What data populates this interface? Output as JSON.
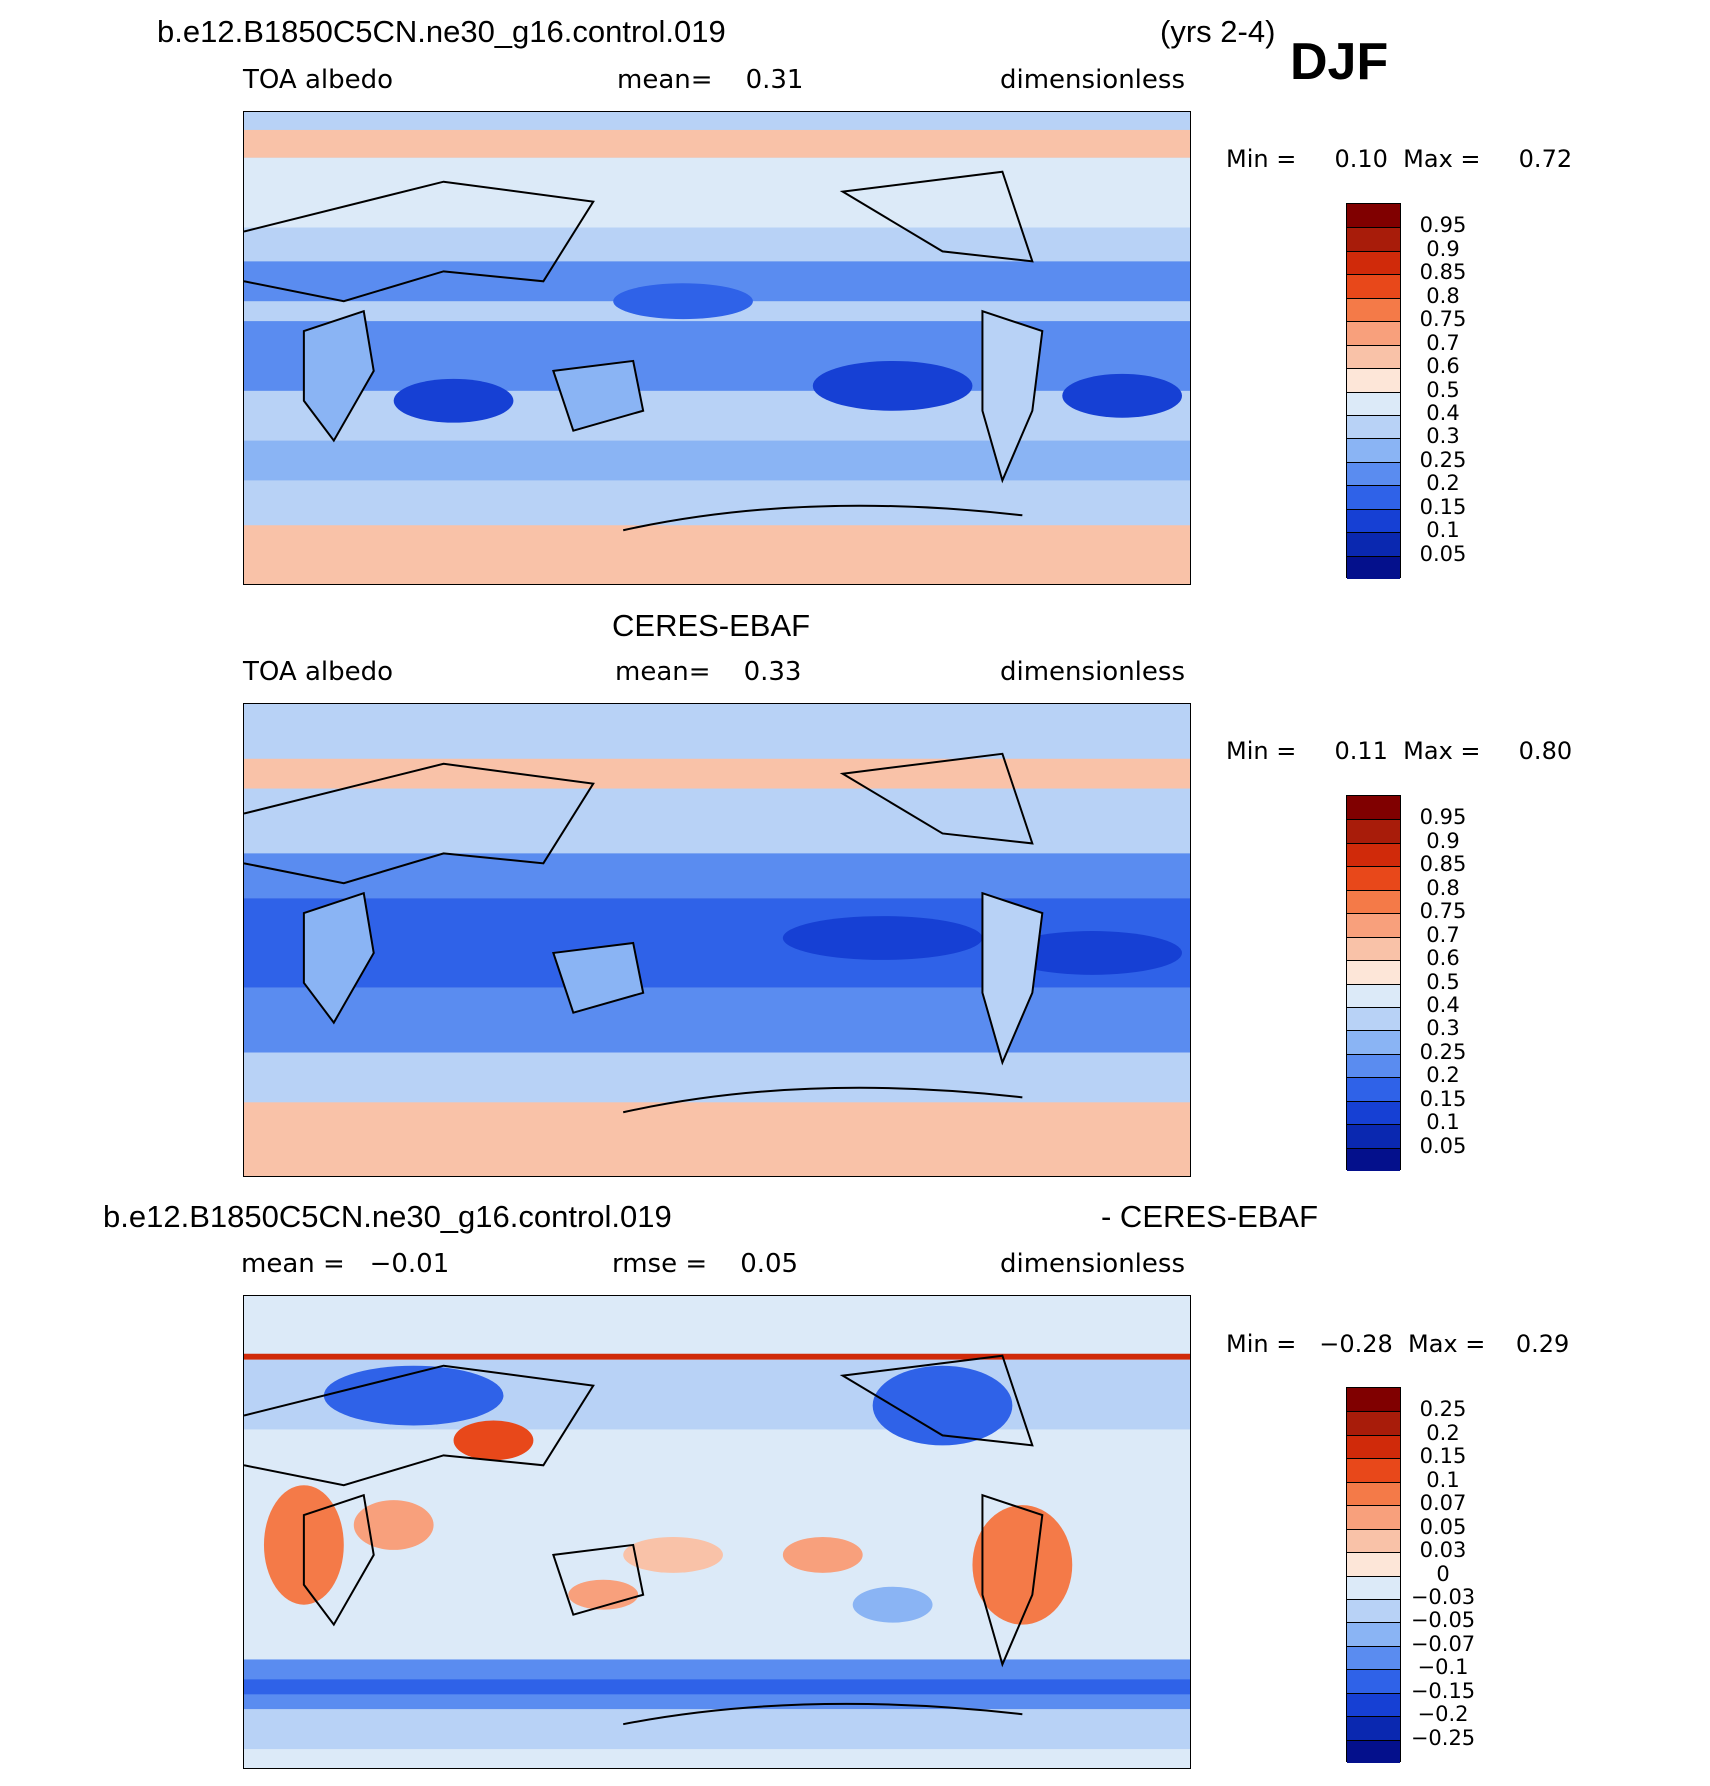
{
  "season": "DJF",
  "panels": [
    {
      "title_left": "b.e12.B1850C5CN.ne30_g16.control.019",
      "title_right": "(yrs 2-4)",
      "variable": "TOA albedo",
      "stat_text": "mean=    0.31",
      "units": "dimensionless",
      "min_max": "Min =     0.10  Max =     0.72",
      "colorbar": {
        "colors": [
          "#800000",
          "#a81c0a",
          "#d02a0a",
          "#e8481a",
          "#f47a48",
          "#f8a07c",
          "#f9c2a8",
          "#fde6d8",
          "#dceaf8",
          "#b8d2f6",
          "#8ab4f4",
          "#5a8cf0",
          "#2f62e8",
          "#1640d4",
          "#0a28b0",
          "#04108c"
        ],
        "labels": [
          "0.95",
          "0.9",
          "0.85",
          "0.8",
          "0.75",
          "0.7",
          "0.6",
          "0.5",
          "0.4",
          "0.3",
          "0.25",
          "0.2",
          "0.15",
          "0.1",
          "0.05"
        ]
      }
    },
    {
      "title_center": "CERES-EBAF",
      "variable": "TOA albedo",
      "stat_text": "mean=    0.33",
      "units": "dimensionless",
      "min_max": "Min =     0.11  Max =     0.80",
      "colorbar": {
        "colors": [
          "#800000",
          "#a81c0a",
          "#d02a0a",
          "#e8481a",
          "#f47a48",
          "#f8a07c",
          "#f9c2a8",
          "#fde6d8",
          "#dceaf8",
          "#b8d2f6",
          "#8ab4f4",
          "#5a8cf0",
          "#2f62e8",
          "#1640d4",
          "#0a28b0",
          "#04108c"
        ],
        "labels": [
          "0.95",
          "0.9",
          "0.85",
          "0.8",
          "0.75",
          "0.7",
          "0.6",
          "0.5",
          "0.4",
          "0.3",
          "0.25",
          "0.2",
          "0.15",
          "0.1",
          "0.05"
        ]
      }
    },
    {
      "title_left": "b.e12.B1850C5CN.ne30_g16.control.019",
      "title_right": "- CERES-EBAF",
      "stat_left": "mean =   −0.01",
      "stat_mid": "rmse =    0.05",
      "units": "dimensionless",
      "min_max": "Min =   −0.28  Max =    0.29",
      "colorbar": {
        "colors": [
          "#800000",
          "#a81c0a",
          "#d02a0a",
          "#e8481a",
          "#f47a48",
          "#f8a07c",
          "#f9c2a8",
          "#fde6d8",
          "#dceaf8",
          "#b8d2f6",
          "#8ab4f4",
          "#5a8cf0",
          "#2f62e8",
          "#1640d4",
          "#0a28b0",
          "#04108c"
        ],
        "labels": [
          "0.25",
          "0.2",
          "0.15",
          "0.1",
          "0.07",
          "0.05",
          "0.03",
          "0",
          "−0.03",
          "−0.05",
          "−0.07",
          "−0.1",
          "−0.15",
          "−0.2",
          "−0.25"
        ]
      }
    }
  ]
}
